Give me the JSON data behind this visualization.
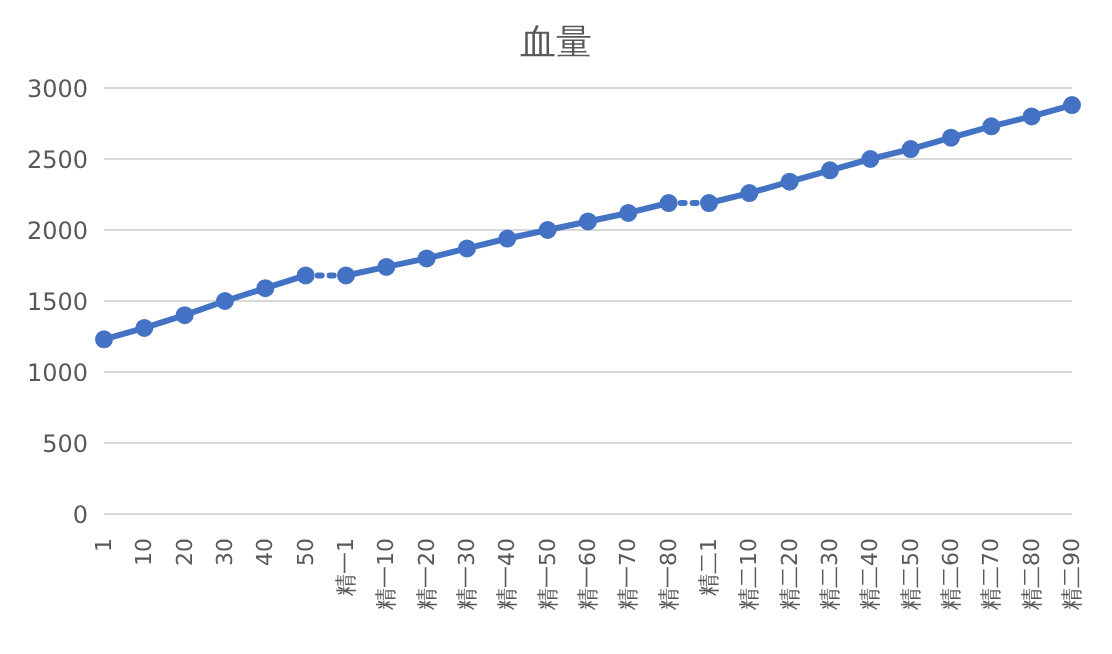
{
  "chart_data": {
    "type": "line",
    "title": "血量",
    "categories": [
      "1",
      "10",
      "20",
      "30",
      "40",
      "50",
      "精一1",
      "精一10",
      "精一20",
      "精一30",
      "精一40",
      "精一50",
      "精一60",
      "精一70",
      "精一80",
      "精二1",
      "精二10",
      "精二20",
      "精二30",
      "精二40",
      "精二50",
      "精二60",
      "精二70",
      "精二80",
      "精二90"
    ],
    "series": [
      {
        "color": "#4472c4",
        "line_style": "solid",
        "marker": "circle",
        "values": [
          1230,
          1310,
          1400,
          1500,
          1590,
          1680,
          null,
          null,
          null,
          null,
          null,
          null,
          null,
          null,
          null,
          null,
          null,
          null,
          null,
          null,
          null,
          null,
          null,
          null,
          null
        ]
      },
      {
        "color": "#4472c4",
        "line_style": "solid",
        "marker": "circle",
        "values": [
          null,
          null,
          null,
          null,
          null,
          null,
          1680,
          1740,
          1800,
          1870,
          1940,
          2000,
          2060,
          2120,
          2190,
          null,
          null,
          null,
          null,
          null,
          null,
          null,
          null,
          null,
          null
        ]
      },
      {
        "color": "#4472c4",
        "line_style": "solid",
        "marker": "circle",
        "values": [
          null,
          null,
          null,
          null,
          null,
          null,
          null,
          null,
          null,
          null,
          null,
          null,
          null,
          null,
          null,
          2190,
          2260,
          2340,
          2420,
          2500,
          2570,
          2650,
          2730,
          2800,
          2880
        ]
      },
      {
        "color": "#4472c4",
        "line_style": "dotted",
        "values": [
          null,
          null,
          null,
          null,
          null,
          1680,
          1680,
          null,
          null,
          null,
          null,
          null,
          null,
          null,
          2190,
          2190,
          null,
          null,
          null,
          null,
          null,
          null,
          null,
          null,
          null
        ]
      }
    ],
    "ylim": [
      0,
      3000
    ],
    "yticks": [
      0,
      500,
      1000,
      1500,
      2000,
      2500,
      3000
    ],
    "grid": "y"
  }
}
